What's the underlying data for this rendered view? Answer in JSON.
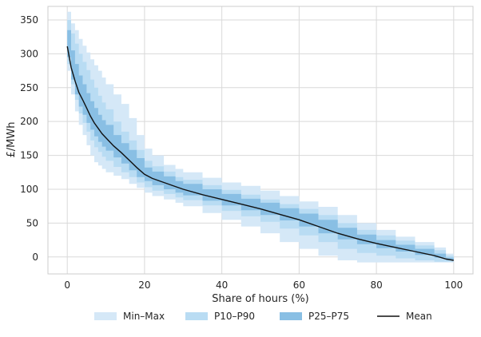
{
  "chart_data": {
    "type": "area",
    "title": "",
    "xlabel": "Share of hours (%)",
    "ylabel": "£/MWh",
    "xlim": [
      -5,
      105
    ],
    "ylim": [
      -25,
      370
    ],
    "xticks": [
      0,
      20,
      40,
      60,
      80,
      100
    ],
    "yticks": [
      0,
      50,
      100,
      150,
      200,
      250,
      300,
      350
    ],
    "grid": true,
    "legend_position": "bottom-center",
    "x": [
      0,
      1,
      2,
      3,
      4,
      5,
      6,
      7,
      8,
      9,
      10,
      12,
      14,
      16,
      18,
      20,
      22,
      25,
      28,
      30,
      35,
      40,
      45,
      50,
      55,
      60,
      65,
      70,
      75,
      80,
      85,
      90,
      95,
      98,
      100
    ],
    "series": [
      {
        "name": "Mean",
        "color": "#111111",
        "values": [
          311,
          280,
          260,
          243,
          232,
          220,
          208,
          198,
          190,
          182,
          176,
          164,
          154,
          143,
          132,
          122,
          116,
          110,
          104,
          100,
          92,
          85,
          78,
          71,
          63,
          55,
          45,
          35,
          27,
          20,
          14,
          8,
          2,
          -3,
          -5
        ]
      }
    ],
    "bands": [
      {
        "name": "Min–Max",
        "color": "#d5e8f7",
        "upper": [
          362,
          345,
          335,
          322,
          312,
          302,
          292,
          283,
          275,
          265,
          255,
          240,
          226,
          205,
          180,
          160,
          150,
          136,
          130,
          125,
          117,
          110,
          105,
          98,
          90,
          82,
          74,
          62,
          50,
          40,
          30,
          22,
          14,
          5,
          -5
        ],
        "lower": [
          275,
          240,
          215,
          195,
          180,
          165,
          150,
          140,
          135,
          130,
          125,
          120,
          115,
          108,
          102,
          95,
          90,
          85,
          80,
          75,
          65,
          55,
          45,
          35,
          22,
          12,
          2,
          -5,
          -8,
          -8,
          -8,
          -8,
          -8,
          -8,
          -5
        ]
      },
      {
        "name": "P10–P90",
        "color": "#b9dcf3",
        "upper": [
          350,
          330,
          315,
          300,
          288,
          276,
          262,
          250,
          238,
          228,
          218,
          200,
          185,
          172,
          158,
          142,
          134,
          126,
          118,
          114,
          106,
          99,
          92,
          85,
          78,
          71,
          62,
          50,
          40,
          32,
          24,
          17,
          10,
          2,
          -5
        ],
        "lower": [
          285,
          255,
          232,
          212,
          198,
          185,
          172,
          162,
          155,
          148,
          142,
          133,
          125,
          118,
          110,
          103,
          98,
          93,
          88,
          84,
          76,
          68,
          60,
          52,
          42,
          32,
          22,
          12,
          6,
          2,
          -2,
          -5,
          -7,
          -7,
          -5
        ]
      },
      {
        "name": "P25–P75",
        "color": "#89bfe4",
        "upper": [
          335,
          305,
          285,
          268,
          255,
          242,
          230,
          220,
          210,
          202,
          195,
          180,
          168,
          158,
          146,
          132,
          126,
          119,
          112,
          108,
          100,
          93,
          86,
          80,
          72,
          64,
          55,
          43,
          33,
          25,
          18,
          12,
          5,
          -1,
          -5
        ],
        "lower": [
          295,
          262,
          240,
          222,
          210,
          198,
          188,
          178,
          170,
          163,
          157,
          147,
          138,
          128,
          118,
          112,
          106,
          100,
          95,
          91,
          83,
          76,
          69,
          62,
          54,
          45,
          35,
          26,
          19,
          13,
          8,
          3,
          -1,
          -5,
          -5
        ]
      }
    ],
    "legend": [
      "Min–Max",
      "P10–P90",
      "P25–P75",
      "Mean"
    ]
  }
}
